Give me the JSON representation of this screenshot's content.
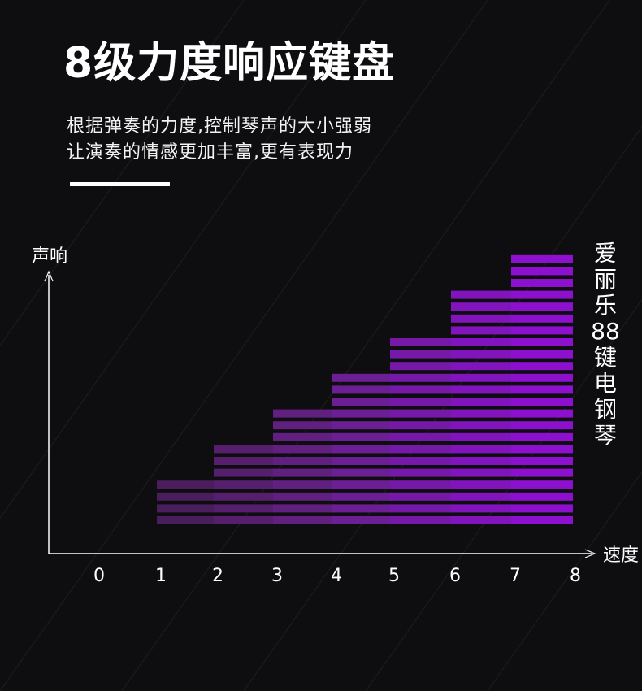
{
  "header": {
    "title": "8级力度响应键盘",
    "desc_lines": [
      "根据弹奏的力度,控制琴声的大小强弱",
      "让演奏的情感更加丰富,更有表现力"
    ]
  },
  "side_label": {
    "chars": [
      "爱",
      "丽",
      "乐",
      "88",
      "键",
      "电",
      "钢",
      "琴"
    ]
  },
  "colors": {
    "background": "#0e0d0f",
    "bar_colors": [
      "#4a1d5c",
      "#561f6e",
      "#611f80",
      "#6c1f94",
      "#7719a8",
      "#8214bd",
      "#8d10cf"
    ]
  },
  "chart_data": {
    "type": "bar",
    "ylabel": "声响",
    "xlabel": "速度",
    "x_ticks": [
      "0",
      "1",
      "2",
      "3",
      "4",
      "5",
      "6",
      "7",
      "8"
    ],
    "categories": [
      "1-2",
      "2-3",
      "3-4",
      "4-5",
      "5-6",
      "6-7",
      "7-8"
    ],
    "values": [
      4,
      7,
      10,
      13,
      16,
      20,
      23
    ],
    "grid": false,
    "legend": "none"
  }
}
